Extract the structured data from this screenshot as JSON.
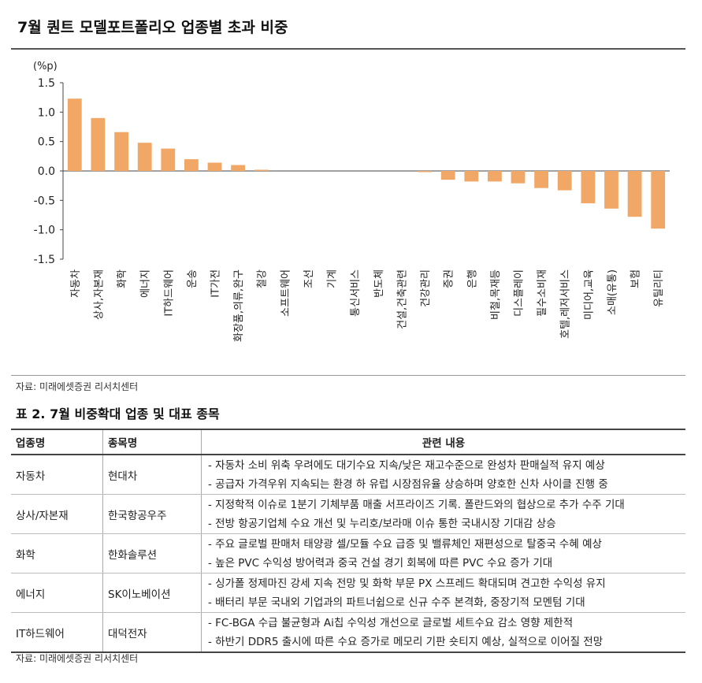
{
  "title": "7월 퀀트 모델포트폴리오 업종별 초과 비중",
  "chart_data": {
    "type": "bar",
    "unit_label": "(%p)",
    "categories": [
      "자동차",
      "상사,자본재",
      "화학",
      "에너지",
      "IT하드웨어",
      "운송",
      "IT가전",
      "화장품,의류,완구",
      "철강",
      "소프트웨어",
      "조선",
      "기계",
      "통신서비스",
      "반도체",
      "건설,건축관련",
      "건강관리",
      "증권",
      "은행",
      "비철,목재등",
      "디스플레이",
      "필수소비재",
      "호텔,레저서비스",
      "미디어,교육",
      "소매(유통)",
      "보험",
      "유틸리티"
    ],
    "values": [
      1.23,
      0.9,
      0.66,
      0.48,
      0.38,
      0.2,
      0.14,
      0.1,
      0.02,
      0.0,
      0.0,
      0.0,
      0.0,
      0.0,
      0.0,
      -0.02,
      -0.15,
      -0.18,
      -0.18,
      -0.21,
      -0.29,
      -0.33,
      -0.55,
      -0.64,
      -0.78,
      -0.98
    ],
    "ylim": [
      -1.5,
      1.5
    ],
    "yticks": [
      "1.5",
      "1.0",
      "0.5",
      "0.0",
      "-0.5",
      "-1.0",
      "-1.5"
    ],
    "bar_color": "#f1a765",
    "grid": false
  },
  "chart_source": "자료: 미래에셋증권 리서치센터",
  "table": {
    "title": "표 2. 7월 비중확대 업종 및 대표 종목",
    "headers": [
      "업종명",
      "종목명",
      "관련 내용"
    ],
    "rows": [
      {
        "sector": "자동차",
        "stock": "현대차",
        "notes": [
          "- 자동차 소비 위축 우려에도 대기수요 지속/낮은 재고수준으로 완성차 판매실적 유지 예상",
          "- 공급자 가격우위 지속되는 환경 하 유럽 시장점유율 상승하며 양호한 신차 사이클 진행 중"
        ]
      },
      {
        "sector": "상사/자본재",
        "stock": "한국항공우주",
        "notes": [
          "- 지정학적 이슈로 1분기 기체부품 매출 서프라이즈 기록. 폴란드와의 협상으로 추가 수주 기대",
          "- 전방 항공기업체 수요 개선 및 누리호/보라매 이슈 통한 국내시장 기대감 상승"
        ]
      },
      {
        "sector": "화학",
        "stock": "한화솔루션",
        "notes": [
          "- 주요 글로벌 판매처 태양광 셀/모듈 수요 급증 및 밸류체인 재편성으로 탈중국 수혜 예상",
          "- 높은 PVC 수익성 방어력과 중국 건설 경기 회복에 따른 PVC 수요 증가 기대"
        ]
      },
      {
        "sector": "에너지",
        "stock": "SK이노베이션",
        "notes": [
          "- 싱가폴 정제마진 강세 지속 전망 및 화학 부문 PX 스프레드 확대되며 견고한 수익성 유지",
          "- 배터리 부문 국내외 기업과의 파트너쉽으로 신규 수주 본격화, 중장기적 모멘텀 기대"
        ]
      },
      {
        "sector": "IT하드웨어",
        "stock": "대덕전자",
        "notes": [
          "- FC-BGA 수급 불균형과 Ai칩 수익성 개선으로 글로벌 세트수요 감소 영향 제한적",
          "- 하반기 DDR5 출시에 따른 수요 증가로 메모리 기판 숏티지 예상, 실적으로 이어질 전망"
        ]
      }
    ]
  },
  "table_source": "자료: 미래에셋증권 리서치센터"
}
